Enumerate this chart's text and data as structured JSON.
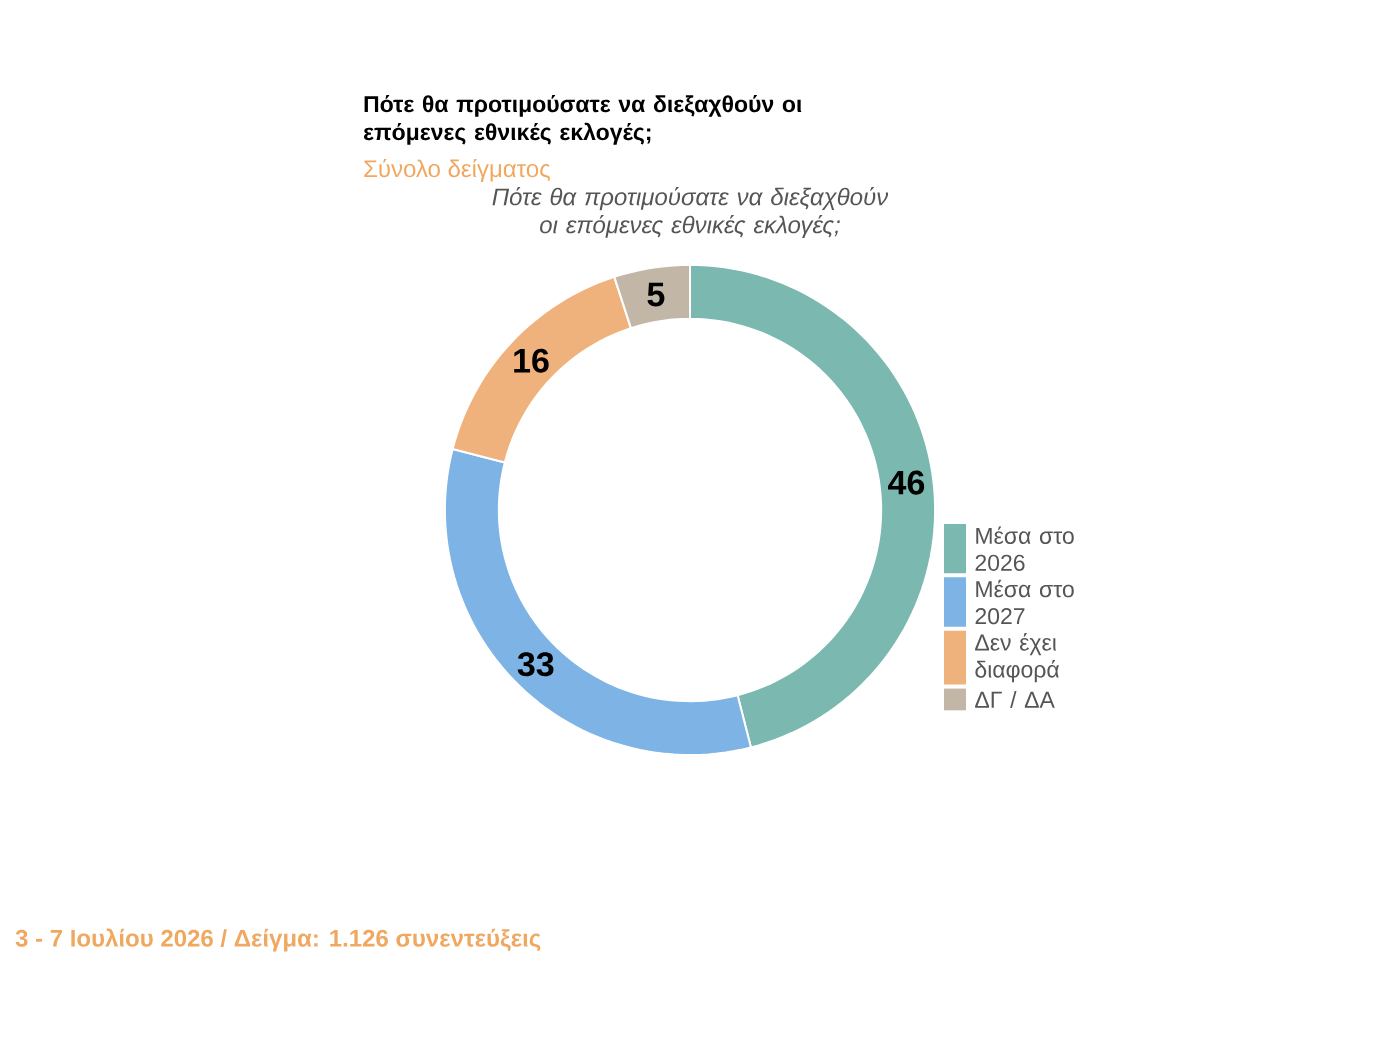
{
  "chart_data": {
    "type": "donut",
    "title": "Πότε θα προτιμούσατε να διεξαχθούν οι επόμενες εθνικές εκλογές;",
    "subtitle": "Σύνολο δείγματος",
    "annotations": [
      "Πότε θα προτιμούσατε να διεξαχθούν οι επόμενες εθνικές εκλογές;",
      "3 - 7 Ιουλίου 2026  /  Δείγμα:  1.126 συνεντεύξεις"
    ],
    "categories": [
      "Μέσα στο 2026",
      "Μέσα στο 2027",
      "Δεν έχει διαφορά",
      "ΔΓ / ΔΑ"
    ],
    "values": [
      46,
      33,
      16,
      5
    ],
    "colors": [
      "#7ab8b0",
      "#7db3e5",
      "#f0b27c",
      "#c2b6a6"
    ],
    "data_labels": true,
    "legend": "right"
  }
}
